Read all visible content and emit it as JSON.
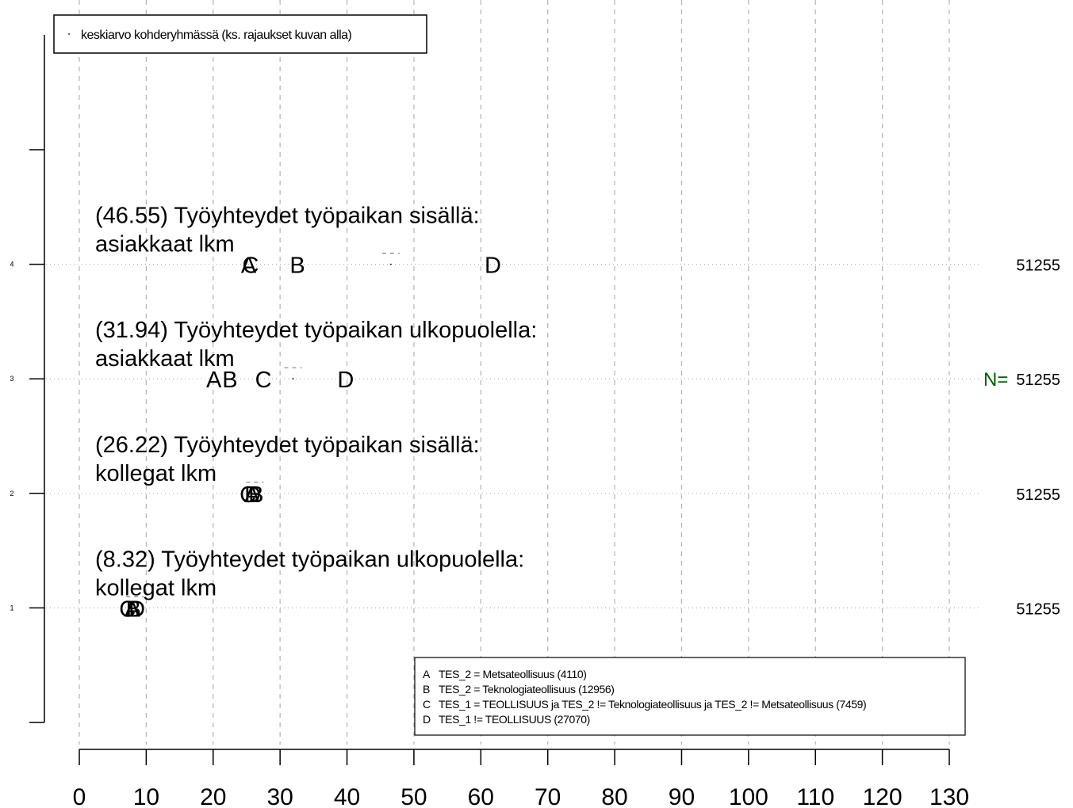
{
  "chart_data": {
    "type": "scatter",
    "title": "",
    "xlabel": "",
    "ylabel": "",
    "xlim": [
      0,
      130
    ],
    "ylim": [
      0,
      5
    ],
    "x_ticks": [
      "0",
      "10",
      "20",
      "30",
      "40",
      "50",
      "60",
      "70",
      "80",
      "90",
      "100",
      "110",
      "120",
      "130"
    ],
    "y_ticks": [
      "1",
      "2",
      "3",
      "4"
    ],
    "grid": "vertical dashed lines at x ticks, horizontal dotted lines at y ticks",
    "legend_top": {
      "placement": "top-left",
      "entry": "keskiarvo kohderyhmässä (ks. rajaukset kuvan alla)"
    },
    "legend_bottom": {
      "placement": "bottom-right",
      "entries": [
        {
          "key": "A",
          "text": "TES_2 = Metsateollisuus (4110)"
        },
        {
          "key": "B",
          "text": "TES_2 = Teknologiateollisuus (12956)"
        },
        {
          "key": "C",
          "text": "TES_1 = TEOLLISUUS ja TES_2 != Teknologiateollisuus ja TES_2 != Metsateollisuus (7459)"
        },
        {
          "key": "D",
          "text": "TES_1 != TEOLLISUUS (27070)"
        }
      ]
    },
    "n_label": "N=",
    "items": [
      {
        "y": 4,
        "title_line1": "(46.55) Työyhteydet työpaikan sisällä:",
        "title_line2": "asiakkaat lkm",
        "mean": 46.55,
        "n": "51255",
        "points": [
          {
            "label": "A",
            "x": 25.3
          },
          {
            "label": "B",
            "x": 32.6
          },
          {
            "label": "C",
            "x": 25.6
          },
          {
            "label": "D",
            "x": 61.8
          }
        ]
      },
      {
        "y": 3,
        "title_line1": "(31.94) Työyhteydet työpaikan ulkopuolella:",
        "title_line2": "asiakkaat lkm",
        "mean": 31.94,
        "n": "51255",
        "points": [
          {
            "label": "A",
            "x": 20.1
          },
          {
            "label": "B",
            "x": 22.5
          },
          {
            "label": "C",
            "x": 27.5
          },
          {
            "label": "D",
            "x": 39.8
          }
        ]
      },
      {
        "y": 2,
        "title_line1": "(26.22) Työyhteydet työpaikan sisällä:",
        "title_line2": "kollegat lkm",
        "mean": 26.22,
        "n": "51255",
        "points": [
          {
            "label": "A",
            "x": 25.8
          },
          {
            "label": "B",
            "x": 26.4
          },
          {
            "label": "C",
            "x": 25.2
          },
          {
            "label": "D",
            "x": 25.9
          }
        ]
      },
      {
        "y": 1,
        "title_line1": "(8.32) Työyhteydet työpaikan ulkopuolella:",
        "title_line2": "kollegat lkm",
        "mean": 8.32,
        "n": "51255",
        "points": [
          {
            "label": "A",
            "x": 7.9
          },
          {
            "label": "B",
            "x": 8.1
          },
          {
            "label": "C",
            "x": 7.2
          },
          {
            "label": "D",
            "x": 8.6
          }
        ]
      }
    ],
    "colors": {
      "text": "#000000",
      "grid": "#b3b3b3",
      "mean_marker": "#808080",
      "n_label": "#006400"
    }
  }
}
